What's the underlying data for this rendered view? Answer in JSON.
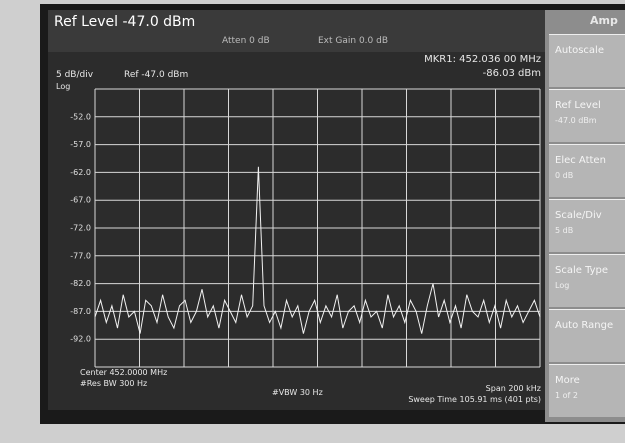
{
  "screen": {
    "ref_level": "Ref Level -47.0 dBm",
    "atten": "Atten 0 dB",
    "ext_gain": "Ext Gain 0.0 dB",
    "marker_freq": "MKR1: 452.036 00 MHz",
    "marker_level": "-86.03 dBm",
    "scale": "5 dB/div",
    "ref": "Ref -47.0 dBm",
    "scale_type": "Log",
    "center": "Center 452.0000 MHz",
    "res_bw": "#Res BW 300 Hz",
    "vbw": "#VBW 30 Hz",
    "span": "Span 200 kHz",
    "sweep": "Sweep Time 105.91 ms (401 pts)",
    "menu_title": "Amp",
    "softkeys": [
      {
        "label": "Autoscale"
      },
      {
        "label": "Ref Level",
        "value": "-47.0 dBm"
      },
      {
        "label": "Elec Atten",
        "value": "0 dB"
      },
      {
        "label": "Scale/Div",
        "value": "5 dB"
      },
      {
        "label": "Scale Type",
        "value": "Log"
      },
      {
        "label": "Auto Range"
      },
      {
        "label": "More",
        "value": "1 of 2"
      }
    ]
  },
  "chart_data": {
    "type": "line",
    "color": "#f2f2f2",
    "grid": true,
    "ylim": [
      -97,
      -47
    ],
    "yticks": [
      {
        "value": -52,
        "label": "-52.0"
      },
      {
        "value": -57,
        "label": "-57.0"
      },
      {
        "value": -62,
        "label": "-62.0"
      },
      {
        "value": -67,
        "label": "-67.0"
      },
      {
        "value": -72,
        "label": "-72.0"
      },
      {
        "value": -77,
        "label": "-77.0"
      },
      {
        "value": -82,
        "label": "-82.0"
      },
      {
        "value": -87,
        "label": "-87.0"
      },
      {
        "value": -92,
        "label": "-92.0"
      }
    ],
    "values": [
      -88,
      -85,
      -89,
      -86,
      -90,
      -84,
      -88,
      -87,
      -91,
      -85,
      -86,
      -89,
      -84,
      -88,
      -90,
      -86,
      -85,
      -89,
      -87,
      -83,
      -88,
      -86,
      -90,
      -85,
      -87,
      -89,
      -84,
      -88,
      -86,
      -61,
      -86,
      -89,
      -87,
      -90,
      -85,
      -88,
      -86,
      -91,
      -87,
      -85,
      -89,
      -86,
      -88,
      -84,
      -90,
      -87,
      -86,
      -89,
      -85,
      -88,
      -87,
      -90,
      -84,
      -88,
      -86,
      -89,
      -85,
      -87,
      -91,
      -86,
      -82,
      -88,
      -85,
      -89,
      -86,
      -90,
      -84,
      -87,
      -88,
      -85,
      -89,
      -86,
      -90,
      -85,
      -88,
      -86,
      -89,
      -87,
      -85,
      -88
    ]
  }
}
